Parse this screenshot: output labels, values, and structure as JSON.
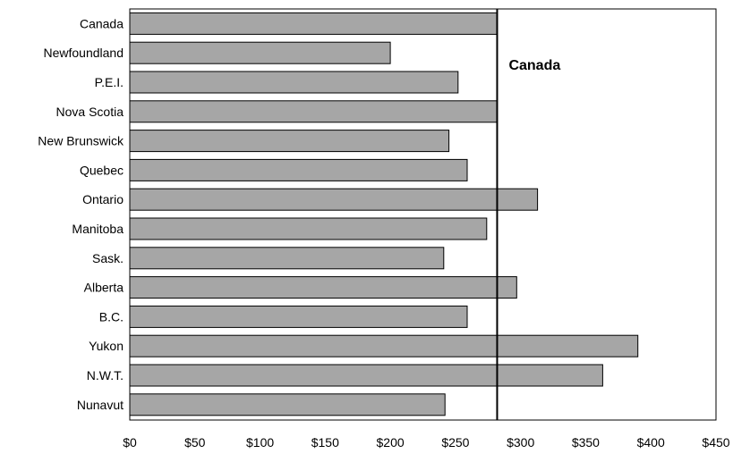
{
  "chart_data": {
    "type": "bar",
    "orientation": "horizontal",
    "categories": [
      "Canada",
      "Newfoundland",
      "P.E.I.",
      "Nova Scotia",
      "New Brunswick",
      "Quebec",
      "Ontario",
      "Manitoba",
      "Sask.",
      "Alberta",
      "B.C.",
      "Yukon",
      "N.W.T.",
      "Nunavut"
    ],
    "values": [
      282,
      200,
      252,
      282,
      245,
      259,
      313,
      274,
      241,
      297,
      259,
      390,
      363,
      242
    ],
    "xlim": [
      0,
      450
    ],
    "xticks": [
      0,
      50,
      100,
      150,
      200,
      250,
      300,
      350,
      400,
      450
    ],
    "xtick_labels": [
      "$0",
      "$50",
      "$100",
      "$150",
      "$200",
      "$250",
      "$300",
      "$350",
      "$400",
      "$450"
    ],
    "reference_line": {
      "value": 282,
      "label": "Canada"
    },
    "bar_color": "#a6a6a6",
    "grid": false,
    "legend": "none"
  }
}
